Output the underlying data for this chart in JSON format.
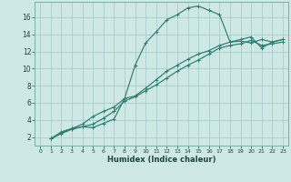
{
  "xlabel": "Humidex (Indice chaleur)",
  "background_color": "#cde8e5",
  "grid_color": "#aacccc",
  "line_color": "#2d7d70",
  "xlim": [
    -0.5,
    23.5
  ],
  "ylim": [
    1.0,
    17.8
  ],
  "xticks": [
    0,
    1,
    2,
    3,
    4,
    5,
    6,
    7,
    8,
    9,
    10,
    11,
    12,
    13,
    14,
    15,
    16,
    17,
    18,
    19,
    20,
    21,
    22,
    23
  ],
  "yticks": [
    2,
    4,
    6,
    8,
    10,
    12,
    14,
    16
  ],
  "line1_x": [
    1,
    2,
    3,
    4,
    5,
    6,
    7,
    8,
    9,
    10,
    11,
    12,
    13,
    14,
    15,
    16,
    17,
    18,
    19,
    20,
    21,
    22,
    23
  ],
  "line1_y": [
    1.8,
    2.6,
    3.0,
    3.2,
    3.1,
    3.6,
    4.1,
    6.5,
    10.4,
    13.0,
    14.3,
    15.7,
    16.3,
    17.1,
    17.3,
    16.8,
    16.3,
    13.1,
    13.2,
    13.0,
    13.4,
    13.1,
    13.4
  ],
  "line2_x": [
    1,
    2,
    3,
    4,
    5,
    6,
    7,
    8,
    9,
    10,
    11,
    12,
    13,
    14,
    15,
    16,
    17,
    18,
    19,
    20,
    21,
    22,
    23
  ],
  "line2_y": [
    1.8,
    2.4,
    2.9,
    3.2,
    3.5,
    4.2,
    5.0,
    6.2,
    6.7,
    7.4,
    8.1,
    8.9,
    9.7,
    10.4,
    11.0,
    11.7,
    12.4,
    12.7,
    12.9,
    13.3,
    12.7,
    12.9,
    13.1
  ],
  "line3_x": [
    1,
    2,
    3,
    4,
    5,
    6,
    7,
    8,
    9,
    10,
    11,
    12,
    13,
    14,
    15,
    16,
    17,
    18,
    19,
    20,
    21,
    22,
    23
  ],
  "line3_y": [
    1.8,
    2.5,
    3.0,
    3.5,
    4.4,
    5.0,
    5.5,
    6.5,
    6.8,
    7.7,
    8.7,
    9.7,
    10.4,
    11.1,
    11.7,
    12.1,
    12.7,
    13.1,
    13.4,
    13.7,
    12.4,
    13.1,
    13.4
  ]
}
